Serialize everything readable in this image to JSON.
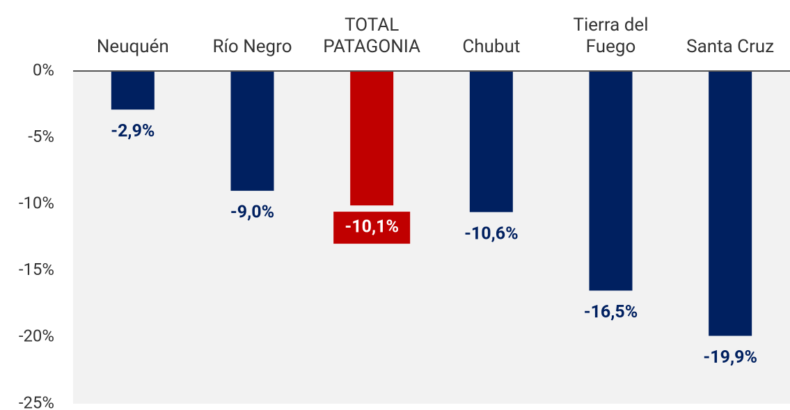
{
  "chart_data": {
    "type": "bar",
    "categories": [
      "Neuquén",
      "Río Negro",
      "TOTAL\nPATAGONIA",
      "Chubut",
      "Tierra del\nFuego",
      "Santa Cruz"
    ],
    "values": [
      -2.9,
      -9.0,
      -10.1,
      -10.6,
      -16.5,
      -19.9
    ],
    "value_labels": [
      "-2,9%",
      "-9,0%",
      "-10,1%",
      "-10,6%",
      "-16,5%",
      "-19,9%"
    ],
    "colors": [
      "#002060",
      "#002060",
      "#c00000",
      "#002060",
      "#002060",
      "#002060"
    ],
    "highlight_label_color": "#ffffff",
    "ylim": [
      -25,
      0
    ],
    "yticks": [
      {
        "value": 0,
        "label": "0%"
      },
      {
        "value": -5,
        "label": "-5%"
      },
      {
        "value": -10,
        "label": "-10%"
      },
      {
        "value": -15,
        "label": "-15%"
      },
      {
        "value": -20,
        "label": "-20%"
      },
      {
        "value": -25,
        "label": "-25%"
      }
    ]
  }
}
